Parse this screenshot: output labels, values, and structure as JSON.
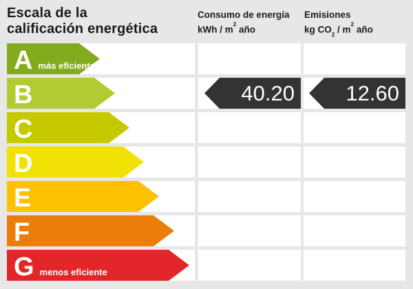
{
  "title": {
    "line1": "Escala de la",
    "line2": "calificación energética"
  },
  "headers": {
    "consumo": {
      "title": "Consumo de energía",
      "unit_a": "kWh / m",
      "unit_sup": "2",
      "unit_b": " año"
    },
    "emisiones": {
      "title": "Emisiones",
      "unit_a": "kg CO",
      "unit_sub": "2",
      "unit_b": " / m",
      "unit_sup": "2",
      "unit_c": " año"
    }
  },
  "scale": {
    "rows": [
      {
        "letter": "A",
        "label": "más eficiente",
        "color": "#83ab1d",
        "arrow_width": 135
      },
      {
        "letter": "B",
        "label": "",
        "color": "#b2cb33",
        "arrow_width": 157
      },
      {
        "letter": "C",
        "label": "",
        "color": "#c6c900",
        "arrow_width": 178
      },
      {
        "letter": "D",
        "label": "",
        "color": "#f1e104",
        "arrow_width": 199
      },
      {
        "letter": "E",
        "label": "",
        "color": "#fdc101",
        "arrow_width": 221
      },
      {
        "letter": "F",
        "label": "",
        "color": "#eb7d0b",
        "arrow_width": 243
      },
      {
        "letter": "G",
        "label": "menos eficiente",
        "color": "#e2262a",
        "arrow_width": 265
      }
    ],
    "rating_row_index": 1
  },
  "values": {
    "consumo": "40.20",
    "emisiones": "12.60",
    "arrow_color": "#333333"
  },
  "colors": {
    "background": "#e7e7e7",
    "cell": "#ffffff",
    "text": "#1a1a1a"
  },
  "chart_data": {
    "type": "bar",
    "title": "Escala de la calificación energética",
    "categories": [
      "A",
      "B",
      "C",
      "D",
      "E",
      "F",
      "G"
    ],
    "category_labels": {
      "A": "más eficiente",
      "G": "menos eficiente"
    },
    "rating": "B",
    "series": [
      {
        "name": "Consumo de energía (kWh / m2 año)",
        "rated_class": "B",
        "value": 40.2
      },
      {
        "name": "Emisiones (kg CO2 / m2 año)",
        "rated_class": "B",
        "value": 12.6
      }
    ],
    "bar_colors": [
      "#83ab1d",
      "#b2cb33",
      "#c6c900",
      "#f1e104",
      "#fdc101",
      "#eb7d0b",
      "#e2262a"
    ],
    "legend_position": "none",
    "grid": false
  }
}
